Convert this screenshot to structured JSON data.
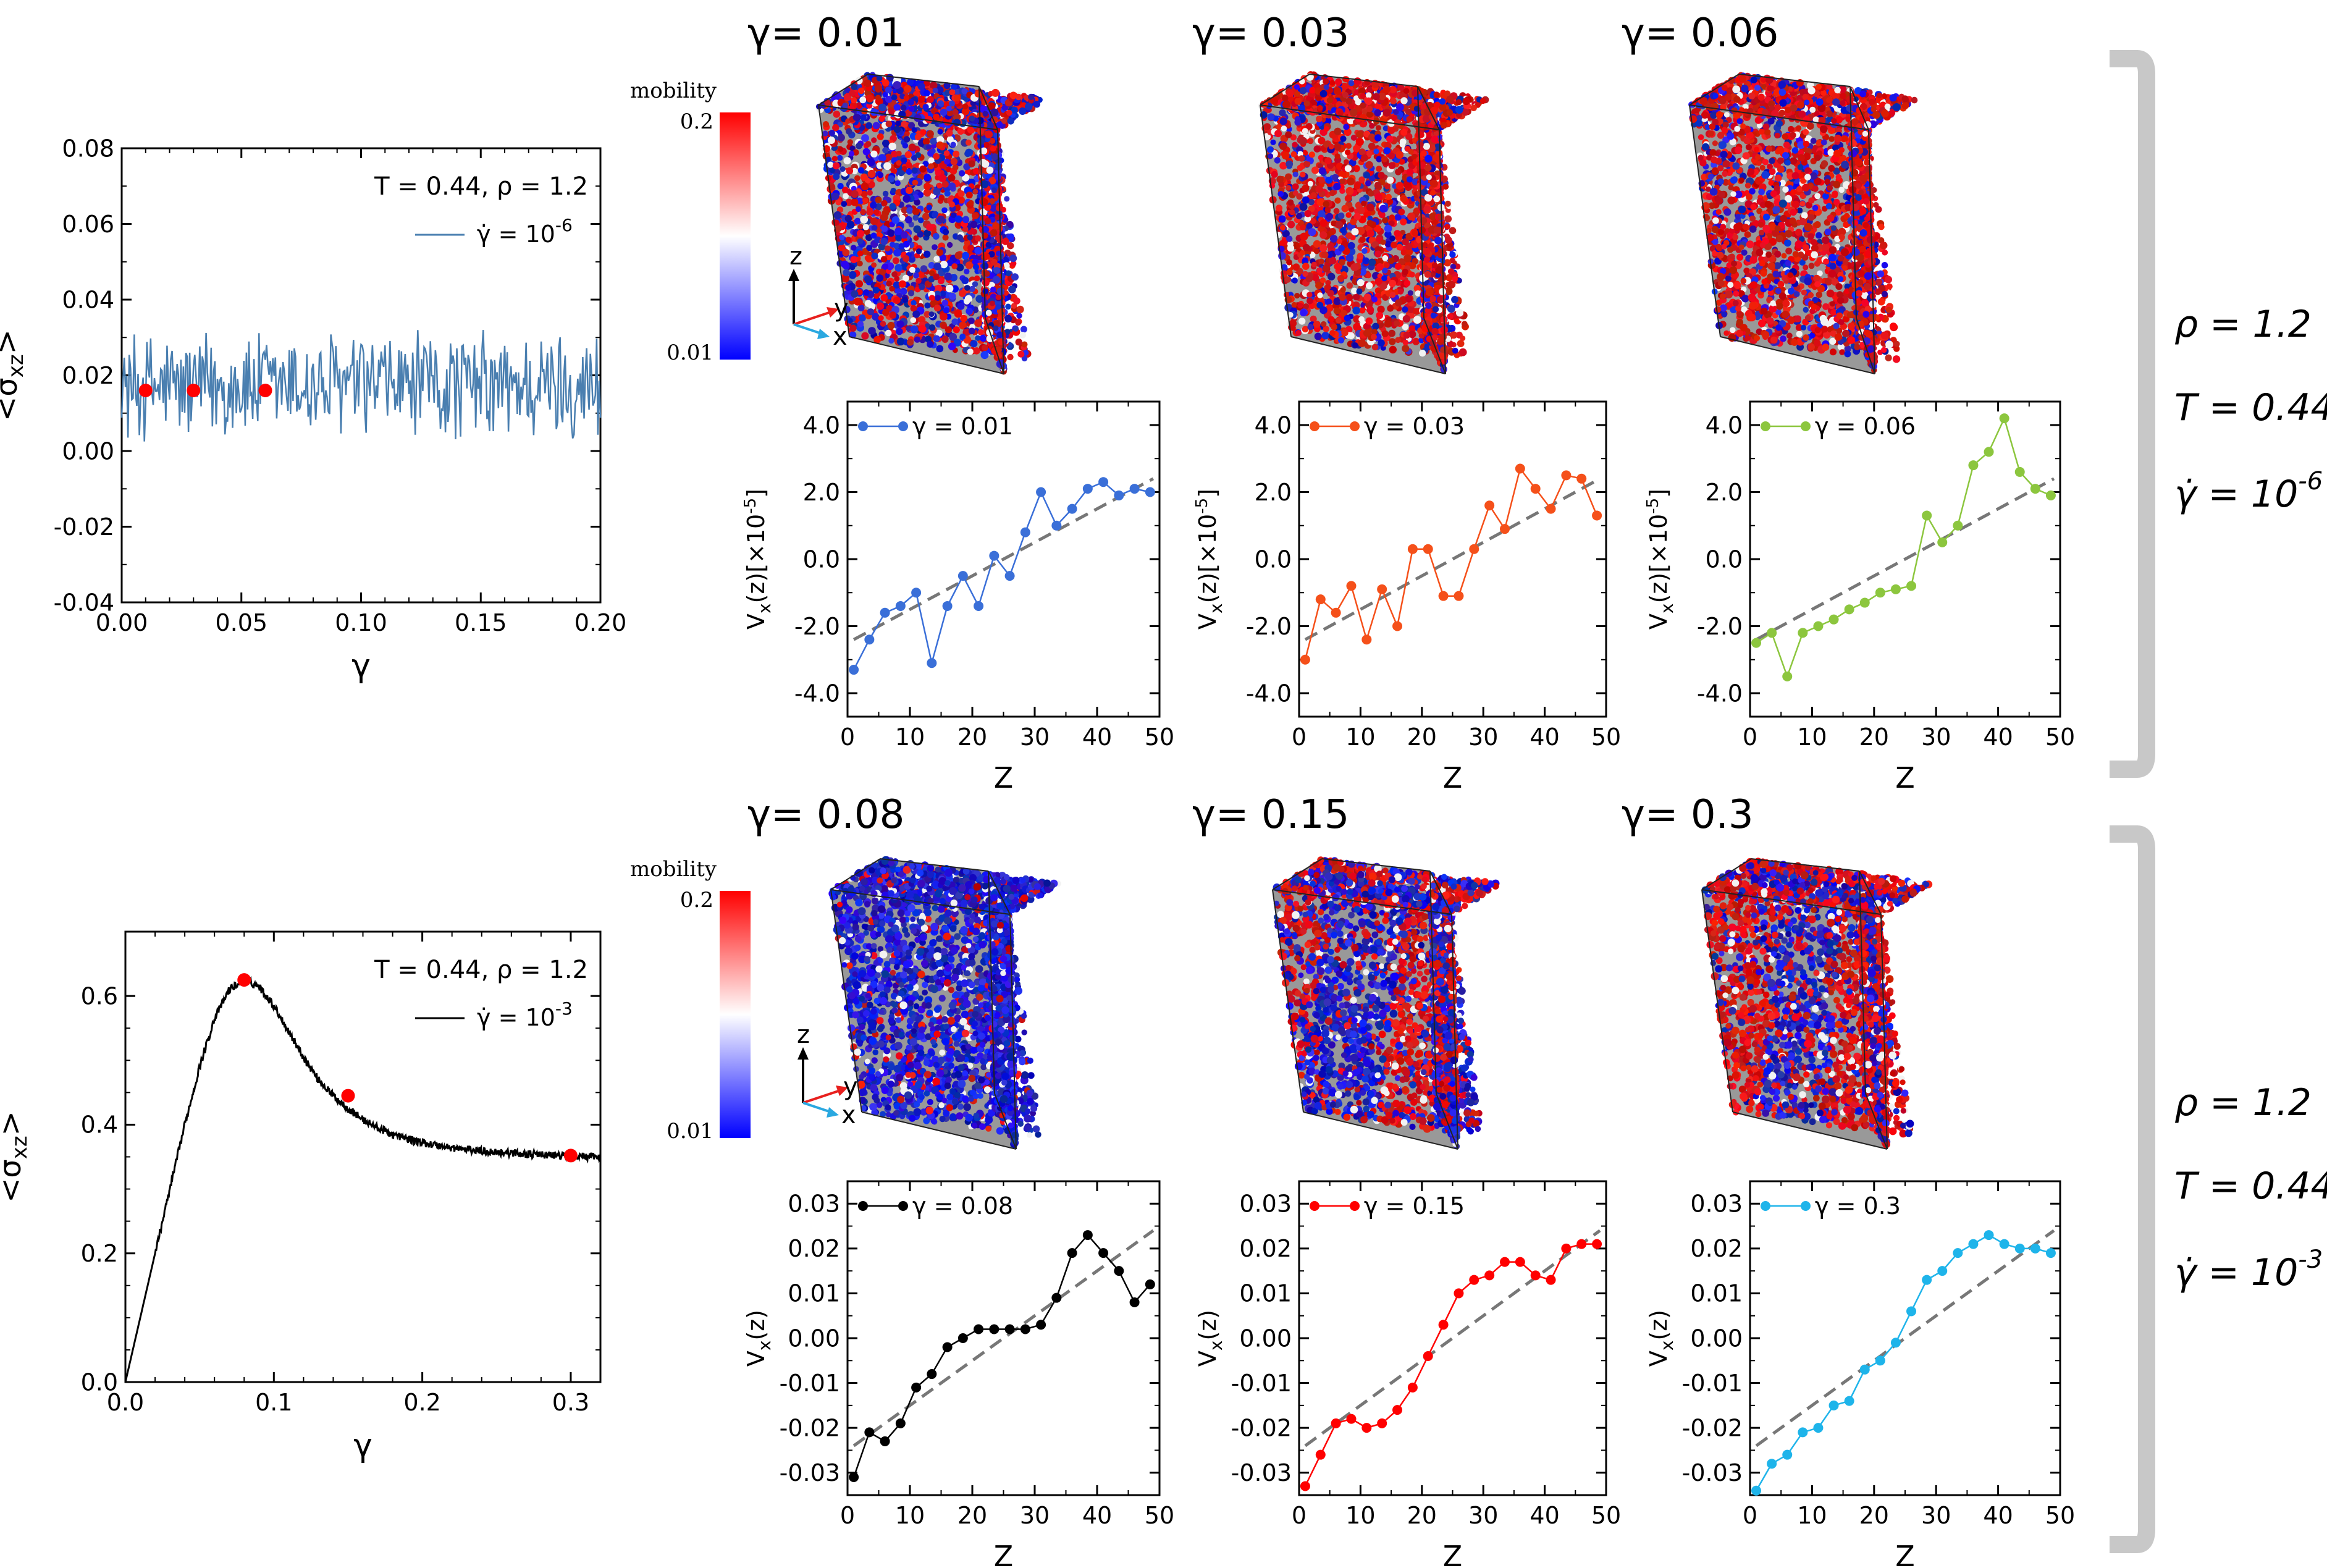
{
  "colors": {
    "stress_low": "#4a7fb0",
    "stress_high": "#000000",
    "marker": "#ff0000",
    "g001": "#3a6fd8",
    "g003": "#f5501a",
    "g006": "#8cc63e",
    "g008": "#000000",
    "g015": "#ff0000",
    "g030": "#1eb4ea",
    "fit": "#777777",
    "bracket": "#c8c8c8",
    "axis_y": "#e8201e",
    "axis_x": "#2aa8e0"
  },
  "colorbar": {
    "label": "mobility",
    "max": "0.2",
    "min": "0.01"
  },
  "axes_triad": {
    "z": "z",
    "y": "y",
    "x": "x"
  },
  "side_params": [
    {
      "rho": "ρ = 1.2",
      "T": "T = 0.44",
      "rate_base": "γ̇ = 10",
      "rate_exp": "-6"
    },
    {
      "rho": "ρ = 1.2",
      "T": "T = 0.44",
      "rate_base": "γ̇ = 10",
      "rate_exp": "-3"
    }
  ],
  "snapshots": [
    {
      "title": "γ= 0.01",
      "pattern": "mixed"
    },
    {
      "title": "γ= 0.03",
      "pattern": "red"
    },
    {
      "title": "γ= 0.06",
      "pattern": "red"
    },
    {
      "title": "γ= 0.08",
      "pattern": "blue"
    },
    {
      "title": "γ= 0.15",
      "pattern": "bands"
    },
    {
      "title": "γ= 0.3",
      "pattern": "bands_red"
    }
  ],
  "chart_data": [
    {
      "id": "stress_low",
      "type": "line",
      "title": "",
      "annotation": "T = 0.44, ρ = 1.2",
      "legend": {
        "base": "γ̇ = 10",
        "exp": "-6"
      },
      "xlabel": "γ",
      "ylabel": "<σxz>",
      "xlim": [
        0.0,
        0.2
      ],
      "ylim": [
        -0.04,
        0.08
      ],
      "xticks": [
        "0.00",
        "0.05",
        "0.10",
        "0.15",
        "0.20"
      ],
      "xtick_values": [
        0.0,
        0.05,
        0.1,
        0.15,
        0.2
      ],
      "yticks": [
        "-0.04",
        "-0.02",
        "0.00",
        "0.02",
        "0.04",
        "0.06",
        "0.08"
      ],
      "ytick_values": [
        -0.04,
        -0.02,
        0.0,
        0.02,
        0.04,
        0.06,
        0.08
      ],
      "noise_mean": 0.017,
      "noise_amplitude": 0.014,
      "markers": {
        "x": [
          0.01,
          0.03,
          0.06
        ],
        "y": [
          0.016,
          0.016,
          0.016
        ]
      }
    },
    {
      "id": "stress_high",
      "type": "line",
      "title": "",
      "annotation": "T = 0.44, ρ = 1.2",
      "legend": {
        "base": "γ̇ = 10",
        "exp": "-3"
      },
      "xlabel": "γ",
      "ylabel": "<σxz>",
      "xlim": [
        0.0,
        0.32
      ],
      "ylim": [
        0.0,
        0.7
      ],
      "xticks": [
        "0.0",
        "0.1",
        "0.2",
        "0.3"
      ],
      "xtick_values": [
        0.0,
        0.1,
        0.2,
        0.3
      ],
      "yticks": [
        "0.0",
        "0.2",
        "0.4",
        "0.6"
      ],
      "ytick_values": [
        0.0,
        0.2,
        0.4,
        0.6
      ],
      "curve": {
        "x": [
          0.0,
          0.01,
          0.02,
          0.03,
          0.04,
          0.05,
          0.06,
          0.07,
          0.08,
          0.09,
          0.1,
          0.11,
          0.12,
          0.13,
          0.14,
          0.15,
          0.16,
          0.17,
          0.18,
          0.19,
          0.2,
          0.22,
          0.24,
          0.26,
          0.28,
          0.3,
          0.32
        ],
        "y": [
          0.0,
          0.1,
          0.2,
          0.3,
          0.4,
          0.49,
          0.565,
          0.61,
          0.625,
          0.615,
          0.585,
          0.545,
          0.505,
          0.47,
          0.445,
          0.425,
          0.408,
          0.395,
          0.385,
          0.378,
          0.372,
          0.364,
          0.359,
          0.356,
          0.353,
          0.351,
          0.35
        ]
      },
      "markers": {
        "x": [
          0.08,
          0.15,
          0.3
        ],
        "y": [
          0.625,
          0.445,
          0.352
        ]
      }
    },
    {
      "id": "vx_001",
      "type": "line",
      "legend": "γ = 0.01",
      "color_key": "g001",
      "xlabel": "Z",
      "ylabel": "Vx(z)[×10-5]",
      "xlim": [
        0,
        50
      ],
      "ylim": [
        -4.7,
        4.7
      ],
      "xticks": [
        "0",
        "10",
        "20",
        "30",
        "40",
        "50"
      ],
      "xtick_values": [
        0,
        10,
        20,
        30,
        40,
        50
      ],
      "yticks": [
        "-4.0",
        "-2.0",
        "0.0",
        "2.0",
        "4.0"
      ],
      "ytick_values": [
        -4,
        -2,
        0,
        2,
        4
      ],
      "x": [
        1,
        3.5,
        6,
        8.5,
        11,
        13.5,
        16,
        18.5,
        21,
        23.5,
        26,
        28.5,
        31,
        33.5,
        36,
        38.5,
        41,
        43.5,
        46,
        48.5
      ],
      "y": [
        -3.3,
        -2.4,
        -1.6,
        -1.4,
        -1.0,
        -3.1,
        -1.4,
        -0.5,
        -1.4,
        0.1,
        -0.5,
        0.8,
        2.0,
        1.0,
        1.5,
        2.1,
        2.3,
        1.9,
        2.1,
        2.0
      ],
      "fit": [
        -2.4,
        2.4
      ]
    },
    {
      "id": "vx_003",
      "type": "line",
      "legend": "γ = 0.03",
      "color_key": "g003",
      "xlabel": "Z",
      "ylabel": "Vx(z)[×10-5]",
      "xlim": [
        0,
        50
      ],
      "ylim": [
        -4.7,
        4.7
      ],
      "xticks": [
        "0",
        "10",
        "20",
        "30",
        "40",
        "50"
      ],
      "xtick_values": [
        0,
        10,
        20,
        30,
        40,
        50
      ],
      "yticks": [
        "-4.0",
        "-2.0",
        "0.0",
        "2.0",
        "4.0"
      ],
      "ytick_values": [
        -4,
        -2,
        0,
        2,
        4
      ],
      "x": [
        1,
        3.5,
        6,
        8.5,
        11,
        13.5,
        16,
        18.5,
        21,
        23.5,
        26,
        28.5,
        31,
        33.5,
        36,
        38.5,
        41,
        43.5,
        46,
        48.5
      ],
      "y": [
        -3.0,
        -1.2,
        -1.6,
        -0.8,
        -2.4,
        -0.9,
        -2.0,
        0.3,
        0.3,
        -1.1,
        -1.1,
        0.3,
        1.6,
        0.9,
        2.7,
        2.1,
        1.5,
        2.5,
        2.4,
        1.3
      ],
      "fit": [
        -2.4,
        2.4
      ]
    },
    {
      "id": "vx_006",
      "type": "line",
      "legend": "γ = 0.06",
      "color_key": "g006",
      "xlabel": "Z",
      "ylabel": "Vx(z)[×10-5]",
      "xlim": [
        0,
        50
      ],
      "ylim": [
        -4.7,
        4.7
      ],
      "xticks": [
        "0",
        "10",
        "20",
        "30",
        "40",
        "50"
      ],
      "xtick_values": [
        0,
        10,
        20,
        30,
        40,
        50
      ],
      "yticks": [
        "-4.0",
        "-2.0",
        "0.0",
        "2.0",
        "4.0"
      ],
      "ytick_values": [
        -4,
        -2,
        0,
        2,
        4
      ],
      "x": [
        1,
        3.5,
        6,
        8.5,
        11,
        13.5,
        16,
        18.5,
        21,
        23.5,
        26,
        28.5,
        31,
        33.5,
        36,
        38.5,
        41,
        43.5,
        46,
        48.5
      ],
      "y": [
        -2.5,
        -2.2,
        -3.5,
        -2.2,
        -2.0,
        -1.8,
        -1.5,
        -1.3,
        -1.0,
        -0.9,
        -0.8,
        1.3,
        0.5,
        1.0,
        2.8,
        3.2,
        4.2,
        2.6,
        2.1,
        1.9
      ],
      "fit": [
        -2.4,
        2.4
      ]
    },
    {
      "id": "vx_008",
      "type": "line",
      "legend": "γ = 0.08",
      "color_key": "g008",
      "xlabel": "Z",
      "ylabel": "Vx(z)",
      "xlim": [
        0,
        50
      ],
      "ylim": [
        -0.035,
        0.035
      ],
      "xticks": [
        "0",
        "10",
        "20",
        "30",
        "40",
        "50"
      ],
      "xtick_values": [
        0,
        10,
        20,
        30,
        40,
        50
      ],
      "yticks": [
        "-0.03",
        "-0.02",
        "-0.01",
        "0.00",
        "0.01",
        "0.02",
        "0.03"
      ],
      "ytick_values": [
        -0.03,
        -0.02,
        -0.01,
        0.0,
        0.01,
        0.02,
        0.03
      ],
      "x": [
        1,
        3.5,
        6,
        8.5,
        11,
        13.5,
        16,
        18.5,
        21,
        23.5,
        26,
        28.5,
        31,
        33.5,
        36,
        38.5,
        41,
        43.5,
        46,
        48.5
      ],
      "y": [
        -0.031,
        -0.021,
        -0.023,
        -0.019,
        -0.011,
        -0.008,
        -0.002,
        0.0,
        0.002,
        0.002,
        0.002,
        0.002,
        0.003,
        0.009,
        0.019,
        0.023,
        0.019,
        0.015,
        0.008,
        0.012
      ],
      "fit": [
        -0.024,
        0.024
      ]
    },
    {
      "id": "vx_015",
      "type": "line",
      "legend": "γ = 0.15",
      "color_key": "g015",
      "xlabel": "Z",
      "ylabel": "Vx(z)",
      "xlim": [
        0,
        50
      ],
      "ylim": [
        -0.035,
        0.035
      ],
      "xticks": [
        "0",
        "10",
        "20",
        "30",
        "40",
        "50"
      ],
      "xtick_values": [
        0,
        10,
        20,
        30,
        40,
        50
      ],
      "yticks": [
        "-0.03",
        "-0.02",
        "-0.01",
        "0.00",
        "0.01",
        "0.02",
        "0.03"
      ],
      "ytick_values": [
        -0.03,
        -0.02,
        -0.01,
        0.0,
        0.01,
        0.02,
        0.03
      ],
      "x": [
        1,
        3.5,
        6,
        8.5,
        11,
        13.5,
        16,
        18.5,
        21,
        23.5,
        26,
        28.5,
        31,
        33.5,
        36,
        38.5,
        41,
        43.5,
        46,
        48.5
      ],
      "y": [
        -0.033,
        -0.026,
        -0.019,
        -0.018,
        -0.02,
        -0.019,
        -0.016,
        -0.011,
        -0.004,
        0.003,
        0.01,
        0.013,
        0.014,
        0.017,
        0.017,
        0.014,
        0.013,
        0.02,
        0.021,
        0.021
      ],
      "fit": [
        -0.024,
        0.024
      ]
    },
    {
      "id": "vx_030",
      "type": "line",
      "legend": "γ = 0.3",
      "color_key": "g030",
      "xlabel": "Z",
      "ylabel": "Vx(z)",
      "xlim": [
        0,
        50
      ],
      "ylim": [
        -0.035,
        0.035
      ],
      "xticks": [
        "0",
        "10",
        "20",
        "30",
        "40",
        "50"
      ],
      "xtick_values": [
        0,
        10,
        20,
        30,
        40,
        50
      ],
      "yticks": [
        "-0.03",
        "-0.02",
        "-0.01",
        "0.00",
        "0.01",
        "0.02",
        "0.03"
      ],
      "ytick_values": [
        -0.03,
        -0.02,
        -0.01,
        0.0,
        0.01,
        0.02,
        0.03
      ],
      "x": [
        1,
        3.5,
        6,
        8.5,
        11,
        13.5,
        16,
        18.5,
        21,
        23.5,
        26,
        28.5,
        31,
        33.5,
        36,
        38.5,
        41,
        43.5,
        46,
        48.5
      ],
      "y": [
        -0.034,
        -0.028,
        -0.026,
        -0.021,
        -0.02,
        -0.015,
        -0.014,
        -0.007,
        -0.005,
        -0.001,
        0.006,
        0.013,
        0.015,
        0.019,
        0.021,
        0.023,
        0.021,
        0.02,
        0.02,
        0.019
      ],
      "fit": [
        -0.024,
        0.024
      ]
    }
  ]
}
